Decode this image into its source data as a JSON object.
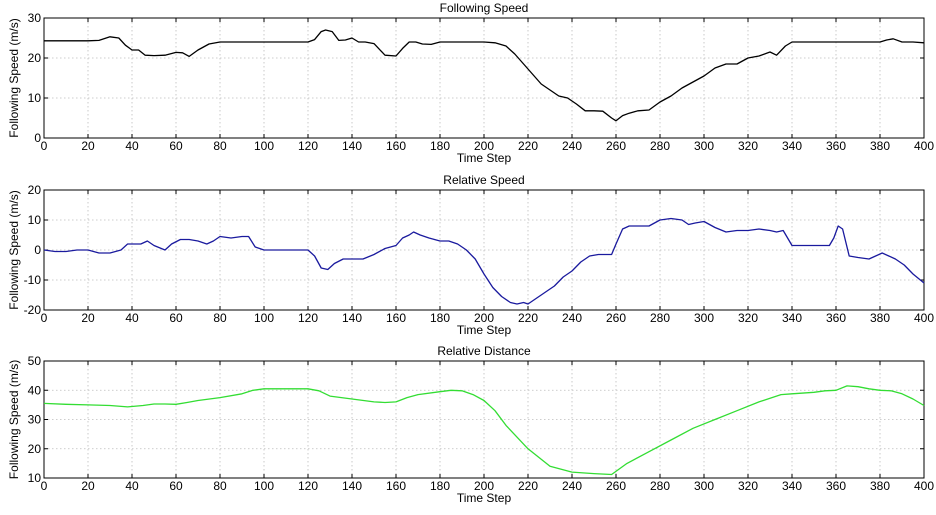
{
  "chart_data": [
    {
      "type": "line",
      "title": "Following Speed",
      "xlabel": "Time Step",
      "ylabel": "Following Speed (m/s)",
      "xlim": [
        0,
        400
      ],
      "ylim": [
        0,
        30
      ],
      "xticks": [
        0,
        20,
        40,
        60,
        80,
        100,
        120,
        140,
        160,
        180,
        200,
        220,
        240,
        260,
        280,
        300,
        320,
        340,
        360,
        380,
        400
      ],
      "yticks": [
        0,
        10,
        20,
        30
      ],
      "grid": true,
      "color": "#000000",
      "series": [
        {
          "x": [
            0,
            10,
            20,
            25,
            30,
            34,
            37,
            40,
            43,
            46,
            50,
            55,
            60,
            63,
            66,
            70,
            75,
            80,
            90,
            100,
            110,
            120,
            123,
            126,
            128,
            131,
            134,
            137,
            140,
            143,
            146,
            150,
            155,
            160,
            163,
            166,
            169,
            172,
            176,
            180,
            185,
            190,
            200,
            205,
            210,
            214,
            218,
            222,
            226,
            230,
            234,
            238,
            242,
            246,
            250,
            254,
            258,
            260,
            263,
            266,
            270,
            275,
            280,
            285,
            290,
            295,
            300,
            305,
            310,
            315,
            320,
            325,
            330,
            333,
            337,
            340,
            350,
            360,
            370,
            380,
            383,
            386,
            390,
            395,
            400
          ],
          "y": [
            24.3,
            24.3,
            24.3,
            24.4,
            25.3,
            25.0,
            23.2,
            22.0,
            22.0,
            20.7,
            20.6,
            20.7,
            21.4,
            21.3,
            20.4,
            22.0,
            23.5,
            24.0,
            24.0,
            24.0,
            24.0,
            24.0,
            24.6,
            26.6,
            27.0,
            26.6,
            24.4,
            24.5,
            25.0,
            24.0,
            24.0,
            23.6,
            20.7,
            20.5,
            22.4,
            24.0,
            24.0,
            23.5,
            23.4,
            24.0,
            24.0,
            24.0,
            24.0,
            23.8,
            23.0,
            21.0,
            18.5,
            16.0,
            13.5,
            12.0,
            10.5,
            10.0,
            8.5,
            6.8,
            6.8,
            6.7,
            5.0,
            4.3,
            5.6,
            6.2,
            6.8,
            7.0,
            9.0,
            10.5,
            12.5,
            14.0,
            15.5,
            17.5,
            18.5,
            18.5,
            20.0,
            20.5,
            21.5,
            20.7,
            23.0,
            24.0,
            24.0,
            24.0,
            24.0,
            24.0,
            24.5,
            24.8,
            24.0,
            24.0,
            23.8
          ]
        }
      ]
    },
    {
      "type": "line",
      "title": "Relative Speed",
      "xlabel": "Time Step",
      "ylabel": "Following Speed (m/s)",
      "xlim": [
        0,
        400
      ],
      "ylim": [
        -20,
        20
      ],
      "xticks": [
        0,
        20,
        40,
        60,
        80,
        100,
        120,
        140,
        160,
        180,
        200,
        220,
        240,
        260,
        280,
        300,
        320,
        340,
        360,
        380,
        400
      ],
      "yticks": [
        -20,
        -10,
        0,
        10,
        20
      ],
      "grid": true,
      "color": "#1a1a9e",
      "series": [
        {
          "x": [
            0,
            5,
            10,
            15,
            20,
            25,
            30,
            35,
            38,
            41,
            44,
            47,
            50,
            55,
            58,
            62,
            66,
            70,
            74,
            77,
            80,
            85,
            90,
            93,
            96,
            100,
            110,
            120,
            123,
            126,
            129,
            132,
            136,
            140,
            145,
            150,
            155,
            160,
            163,
            166,
            168,
            171,
            175,
            180,
            184,
            188,
            192,
            196,
            200,
            204,
            208,
            212,
            215,
            218,
            220,
            224,
            228,
            232,
            236,
            240,
            244,
            248,
            252,
            255,
            258,
            260,
            263,
            266,
            270,
            275,
            280,
            285,
            290,
            293,
            296,
            300,
            305,
            310,
            315,
            320,
            325,
            330,
            333,
            336,
            340,
            345,
            350,
            355,
            357,
            359,
            361,
            363,
            366,
            370,
            375,
            378,
            381,
            384,
            387,
            391,
            395,
            400
          ],
          "y": [
            0.0,
            -0.5,
            -0.5,
            0.0,
            0.0,
            -1.0,
            -1.0,
            0.0,
            2.0,
            2.0,
            2.0,
            3.0,
            1.5,
            0.0,
            2.0,
            3.5,
            3.5,
            3.0,
            2.0,
            3.0,
            4.5,
            4.0,
            4.5,
            4.5,
            1.0,
            0.0,
            0.0,
            0.0,
            -2.0,
            -6.0,
            -6.5,
            -4.5,
            -3.0,
            -3.0,
            -3.0,
            -1.5,
            0.5,
            1.5,
            4.0,
            5.0,
            6.0,
            5.0,
            4.0,
            3.0,
            3.0,
            2.0,
            0.0,
            -3.0,
            -8.0,
            -12.5,
            -15.5,
            -17.5,
            -18.0,
            -17.5,
            -18.0,
            -16.0,
            -14.0,
            -12.0,
            -9.0,
            -7.0,
            -4.0,
            -2.0,
            -1.5,
            -1.5,
            -1.5,
            2.0,
            7.0,
            8.0,
            8.0,
            8.0,
            10.0,
            10.5,
            10.0,
            8.5,
            9.0,
            9.5,
            7.5,
            6.0,
            6.5,
            6.5,
            7.0,
            6.5,
            6.0,
            6.5,
            1.5,
            1.5,
            1.5,
            1.5,
            1.5,
            4.0,
            8.0,
            7.0,
            -2.0,
            -2.5,
            -3.0,
            -2.0,
            -1.0,
            -2.0,
            -3.0,
            -5.0,
            -8.0,
            -11.0
          ]
        }
      ]
    },
    {
      "type": "line",
      "title": "Relative Distance",
      "xlabel": "Time Step",
      "ylabel": "Following Speed (m/s)",
      "xlim": [
        0,
        400
      ],
      "ylim": [
        10,
        50
      ],
      "xticks": [
        0,
        20,
        40,
        60,
        80,
        100,
        120,
        140,
        160,
        180,
        200,
        220,
        240,
        260,
        280,
        300,
        320,
        340,
        360,
        380,
        400
      ],
      "yticks": [
        10,
        20,
        30,
        40,
        50
      ],
      "grid": true,
      "color": "#33dd33",
      "series": [
        {
          "x": [
            0,
            10,
            20,
            30,
            38,
            45,
            50,
            55,
            60,
            65,
            70,
            80,
            90,
            95,
            100,
            110,
            120,
            125,
            130,
            140,
            150,
            155,
            160,
            165,
            170,
            180,
            185,
            190,
            195,
            200,
            205,
            210,
            220,
            230,
            240,
            250,
            258,
            265,
            275,
            285,
            295,
            305,
            315,
            325,
            335,
            340,
            350,
            355,
            360,
            365,
            370,
            375,
            380,
            385,
            390,
            395,
            400
          ],
          "y": [
            35.5,
            35.2,
            35.0,
            34.8,
            34.3,
            34.8,
            35.3,
            35.3,
            35.2,
            35.8,
            36.5,
            37.5,
            38.8,
            40.0,
            40.5,
            40.5,
            40.5,
            39.8,
            38.0,
            37.0,
            36.0,
            35.8,
            36.0,
            37.5,
            38.5,
            39.5,
            40.0,
            39.8,
            38.5,
            36.5,
            33.0,
            28.0,
            20.0,
            14.0,
            12.0,
            11.5,
            11.2,
            15.0,
            19.0,
            23.0,
            27.0,
            30.0,
            33.0,
            36.0,
            38.5,
            38.8,
            39.3,
            39.8,
            40.0,
            41.5,
            41.2,
            40.5,
            40.0,
            39.8,
            38.8,
            37.0,
            34.8
          ]
        }
      ]
    }
  ]
}
